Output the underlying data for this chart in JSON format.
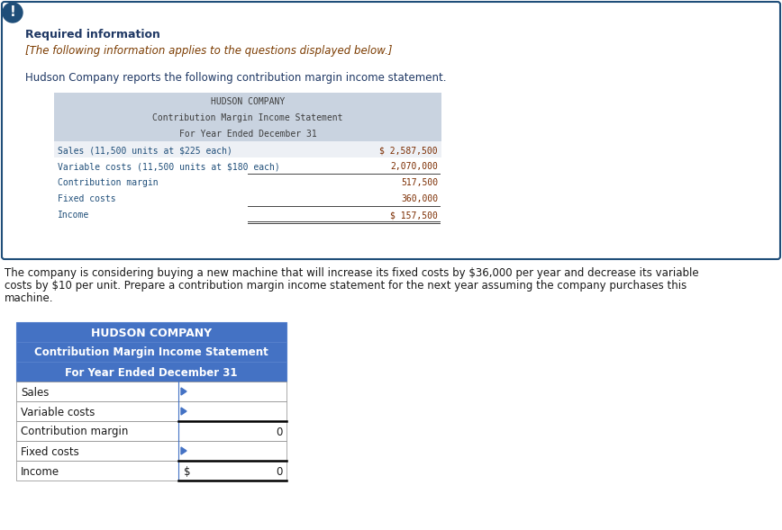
{
  "fig_width": 8.68,
  "fig_height": 5.89,
  "dpi": 100,
  "bg_color": "#ffffff",
  "outer_box_color": "#1f4e79",
  "outer_box_fill": "#ffffff",
  "icon_bg": "#1f4e79",
  "required_info_color": "#1f3864",
  "italic_text_color": "#7b3b00",
  "body_text_color": "#1f3864",
  "table1_header_bg": "#c9d3e0",
  "table1_header_text": "#3d3d3d",
  "table1_row_text": "#1f4e79",
  "table1_value_color": "#7b2c00",
  "table2_header_bg": "#4472c4",
  "table2_header_text": "#ffffff",
  "table2_row_label_color": "#1a1a1a",
  "table2_value_color": "#1a1a1a",
  "body_paragraph_color": "#1a1a1a",
  "req_info_text": "Required information",
  "italic_line": "[The following information applies to the questions displayed below.]",
  "body_line": "Hudson Company reports the following contribution margin income statement.",
  "company_name_1": "HUDSON COMPANY",
  "stmt_title_1": "Contribution Margin Income Statement",
  "period_1": "For Year Ended December 31",
  "table1_rows": [
    [
      "Sales (11,500 units at $225 each)",
      "$ 2,587,500"
    ],
    [
      "Variable costs (11,500 units at $180 each)",
      "2,070,000"
    ],
    [
      "Contribution margin",
      "517,500"
    ],
    [
      "Fixed costs",
      "360,000"
    ],
    [
      "Income",
      "$ 157,500"
    ]
  ],
  "paragraph2_lines": [
    "The company is considering buying a new machine that will increase its fixed costs by $36,000 per year and decrease its variable",
    "costs by $10 per unit. Prepare a contribution margin income statement for the next year assuming the company purchases this",
    "machine."
  ],
  "company_name_2": "HUDSON COMPANY",
  "stmt_title_2": "Contribution Margin Income Statement",
  "period_2": "For Year Ended December 31",
  "table2_rows": [
    [
      "Sales",
      "",
      ""
    ],
    [
      "Variable costs",
      "",
      ""
    ],
    [
      "Contribution margin",
      "",
      "0"
    ],
    [
      "Fixed costs",
      "",
      ""
    ],
    [
      "Income",
      "$",
      "0"
    ]
  ]
}
